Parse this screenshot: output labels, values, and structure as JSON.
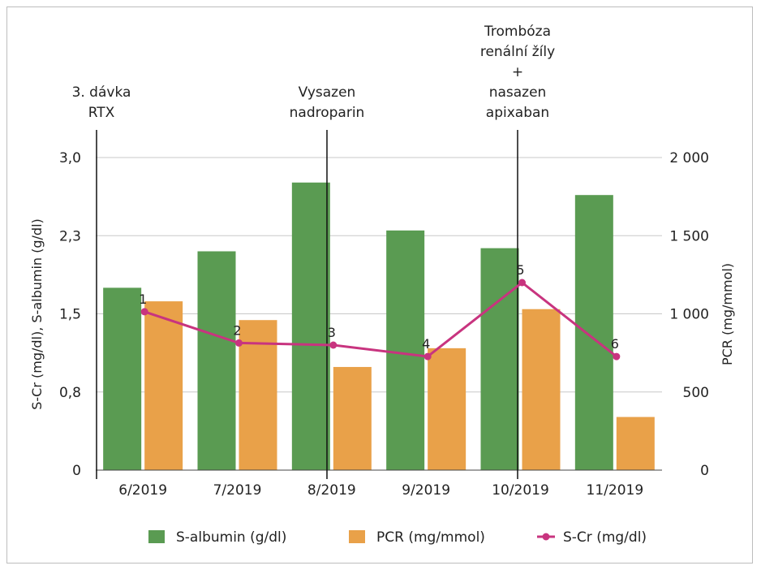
{
  "chart_data": {
    "type": "bar",
    "categories": [
      "6/2019",
      "7/2019",
      "8/2019",
      "9/2019",
      "10/2019",
      "11/2019"
    ],
    "series": [
      {
        "name": "S-albumin (g/dl)",
        "kind": "bar",
        "axis": "left",
        "color": "#5a9b52",
        "values": [
          1.75,
          2.1,
          2.76,
          2.3,
          2.13,
          2.64
        ]
      },
      {
        "name": "PCR (mg/mmol)",
        "kind": "bar",
        "axis": "right",
        "color": "#e9a149",
        "values": [
          1080,
          960,
          660,
          780,
          1030,
          340
        ]
      },
      {
        "name": "S-Cr (mg/dl)",
        "kind": "line",
        "axis": "left",
        "color": "#c8347f",
        "values": [
          1.52,
          1.22,
          1.2,
          1.09,
          1.8,
          1.09
        ],
        "point_labels": [
          "1",
          "2",
          "3",
          "4",
          "5",
          "6"
        ]
      }
    ],
    "y_left": {
      "label": "S-Cr  (mg/dl), S-albumin (g/dl)",
      "ticks": [
        "0",
        "0,8",
        "1,5",
        "2,3",
        "3,0"
      ],
      "range": [
        0,
        3.0
      ]
    },
    "y_right": {
      "label": "PCR (mg/mmol)",
      "ticks": [
        "0",
        "500",
        "1 000",
        "1 500",
        "2 000"
      ],
      "range": [
        0,
        2000
      ]
    },
    "annotations": [
      {
        "category_index": 0,
        "lines": [
          "3. dávka",
          "RTX"
        ]
      },
      {
        "category_index": 2,
        "lines": [
          "Vysazen",
          "nadroparin"
        ]
      },
      {
        "category_index": 4,
        "lines": [
          "Trombóza",
          "renální žíly",
          "+",
          "nasazen",
          "apixaban"
        ]
      }
    ],
    "grid": true,
    "legend_position": "bottom"
  }
}
